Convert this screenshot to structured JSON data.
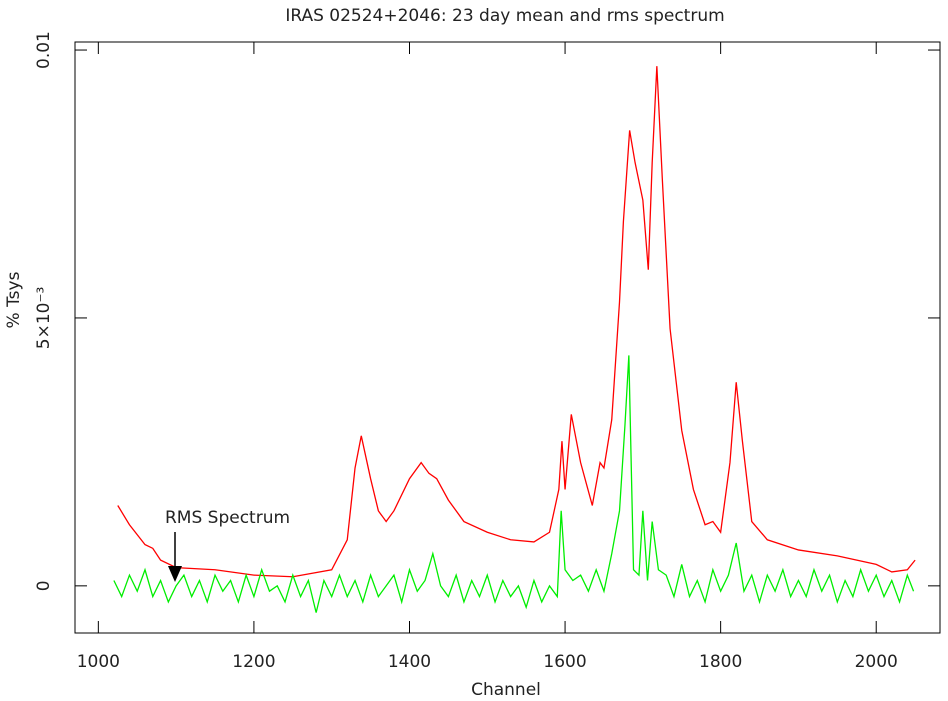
{
  "chart_data": {
    "type": "line",
    "title": "IRAS 02524+2046:  23 day mean and rms spectrum",
    "xlabel": "Channel",
    "ylabel": "% Tsys",
    "xlim": [
      970,
      2082
    ],
    "ylim": [
      -0.00088,
      0.01015
    ],
    "xticks": [
      1000,
      1200,
      1400,
      1600,
      1800,
      2000
    ],
    "yticks": [
      0,
      {
        "value": 0.005,
        "label": "5×10⁻³"
      },
      0.01
    ],
    "annotations": [
      {
        "text": "RMS Spectrum"
      }
    ],
    "series": [
      {
        "color": "#ff0000",
        "x": [
          1025,
          1040,
          1060,
          1070,
          1080,
          1100,
          1150,
          1200,
          1250,
          1300,
          1320,
          1330,
          1338,
          1350,
          1360,
          1370,
          1380,
          1400,
          1415,
          1425,
          1435,
          1450,
          1470,
          1500,
          1530,
          1560,
          1580,
          1592,
          1596,
          1600,
          1608,
          1620,
          1635,
          1645,
          1650,
          1660,
          1670,
          1675,
          1683,
          1690,
          1700,
          1707,
          1712,
          1718,
          1725,
          1735,
          1750,
          1765,
          1780,
          1790,
          1800,
          1812,
          1820,
          1828,
          1840,
          1860,
          1900,
          1950,
          2000,
          2020,
          2040,
          2050
        ],
        "values": [
          0.0015,
          0.00114,
          0.00077,
          0.0007,
          0.00048,
          0.00034,
          0.0003,
          0.0002,
          0.00017,
          0.0003,
          0.00086,
          0.0022,
          0.0028,
          0.002,
          0.0014,
          0.0012,
          0.0014,
          0.002,
          0.0023,
          0.0021,
          0.002,
          0.0016,
          0.0012,
          0.001,
          0.00086,
          0.00082,
          0.001,
          0.0018,
          0.0027,
          0.0018,
          0.0032,
          0.0023,
          0.0015,
          0.0023,
          0.0022,
          0.0031,
          0.0053,
          0.0068,
          0.0085,
          0.0079,
          0.0072,
          0.0059,
          0.0079,
          0.0097,
          0.0076,
          0.0048,
          0.0029,
          0.0018,
          0.00114,
          0.0012,
          0.001,
          0.0023,
          0.0038,
          0.0027,
          0.0012,
          0.00086,
          0.00067,
          0.00056,
          0.0004,
          0.00026,
          0.0003,
          0.00048
        ]
      },
      {
        "color": "#00ee00",
        "x": [
          1020,
          1030,
          1040,
          1050,
          1060,
          1070,
          1080,
          1090,
          1100,
          1110,
          1120,
          1130,
          1140,
          1150,
          1160,
          1170,
          1180,
          1190,
          1200,
          1210,
          1220,
          1230,
          1240,
          1250,
          1260,
          1270,
          1280,
          1290,
          1300,
          1310,
          1320,
          1330,
          1340,
          1350,
          1360,
          1370,
          1380,
          1390,
          1400,
          1410,
          1420,
          1430,
          1440,
          1450,
          1460,
          1470,
          1480,
          1490,
          1500,
          1510,
          1520,
          1530,
          1540,
          1550,
          1560,
          1570,
          1580,
          1590,
          1595,
          1600,
          1610,
          1620,
          1630,
          1640,
          1650,
          1660,
          1670,
          1677,
          1682,
          1688,
          1695,
          1700,
          1706,
          1712,
          1720,
          1730,
          1740,
          1750,
          1760,
          1770,
          1780,
          1790,
          1800,
          1810,
          1820,
          1830,
          1840,
          1850,
          1860,
          1870,
          1880,
          1890,
          1900,
          1910,
          1920,
          1930,
          1940,
          1950,
          1960,
          1970,
          1980,
          1990,
          2000,
          2010,
          2020,
          2030,
          2040,
          2048
        ],
        "values": [
          0.0001,
          -0.0002,
          0.0002,
          -0.0001,
          0.0003,
          -0.0002,
          0.0001,
          -0.0003,
          0,
          0.0002,
          -0.0002,
          0.0001,
          -0.0003,
          0.0002,
          -0.0001,
          0.0001,
          -0.0003,
          0.0002,
          -0.0002,
          0.0003,
          -0.0001,
          0,
          -0.0003,
          0.0002,
          -0.0002,
          0.0001,
          -0.0005,
          0.0001,
          -0.0002,
          0.0002,
          -0.0002,
          0.0001,
          -0.0003,
          0.0002,
          -0.0002,
          0,
          0.0002,
          -0.0003,
          0.0003,
          -0.0001,
          0.0001,
          0.0006,
          0,
          -0.0002,
          0.0002,
          -0.0003,
          0.0001,
          -0.0002,
          0.0002,
          -0.0003,
          0.0001,
          -0.0002,
          0,
          -0.0004,
          0.0001,
          -0.0003,
          0,
          -0.0002,
          0.0014,
          0.0003,
          0.0001,
          0.0002,
          -0.0001,
          0.0003,
          -0.0001,
          0.0006,
          0.0014,
          0.003,
          0.0043,
          0.0003,
          0.0002,
          0.0014,
          0.0001,
          0.0012,
          0.0003,
          0.0002,
          -0.0002,
          0.0004,
          -0.0002,
          0.0001,
          -0.0003,
          0.0003,
          -0.0001,
          0.0002,
          0.0008,
          -0.0001,
          0.0002,
          -0.0003,
          0.0002,
          -0.0001,
          0.0003,
          -0.0002,
          0.0001,
          -0.0002,
          0.0003,
          -0.0001,
          0.0002,
          -0.0003,
          0.0001,
          -0.0002,
          0.0003,
          -0.0001,
          0.0002,
          -0.0002,
          0.0001,
          -0.0003,
          0.0002,
          -0.0001
        ]
      }
    ]
  }
}
